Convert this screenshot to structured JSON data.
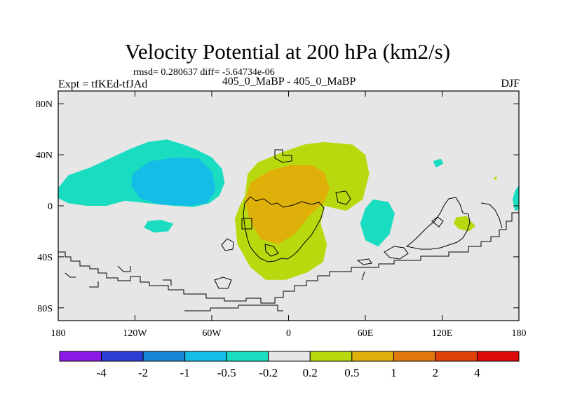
{
  "chart_data": {
    "type": "heatmap",
    "title": "Velocity Potential at 200 hPa (km2/s)",
    "stats": "rmsd= 0.280637  diff= -5.64734e-06",
    "left_label": "Expt = tfKEd-tfJAd",
    "center_label": "405_0_MaBP - 405_0_MaBP",
    "right_label": "DJF",
    "xlim": [
      -180,
      180
    ],
    "ylim": [
      -90,
      90
    ],
    "x_ticks": [
      {
        "value": -180,
        "label": "180"
      },
      {
        "value": -120,
        "label": "120W"
      },
      {
        "value": -60,
        "label": "60W"
      },
      {
        "value": 0,
        "label": "0"
      },
      {
        "value": 60,
        "label": "60E"
      },
      {
        "value": 120,
        "label": "120E"
      },
      {
        "value": 180,
        "label": "180"
      }
    ],
    "y_ticks": [
      {
        "value": 80,
        "label": "80N"
      },
      {
        "value": 40,
        "label": "40N"
      },
      {
        "value": 0,
        "label": "0"
      },
      {
        "value": -40,
        "label": "40S"
      },
      {
        "value": -80,
        "label": "80S"
      }
    ],
    "colorbar": {
      "colors": [
        "#8c1ae6",
        "#2b3fd6",
        "#1a86d9",
        "#14bde6",
        "#1adcc0",
        "#e6e6e6",
        "#b9d90f",
        "#dfaf0a",
        "#e1780e",
        "#e0410a",
        "#dc0a0a"
      ],
      "labels": [
        "-4",
        "-2",
        "-1",
        "-0.5",
        "-0.2",
        "0.2",
        "0.5",
        "1",
        "2",
        "4"
      ]
    },
    "background_color": "#e6e6e6",
    "regions": [
      {
        "level": "-0.5 to -0.2",
        "color": "#1adcc0",
        "points": [
          [
            -180,
            14
          ],
          [
            -172,
            24
          ],
          [
            -155,
            30
          ],
          [
            -140,
            37
          ],
          [
            -125,
            44
          ],
          [
            -110,
            50
          ],
          [
            -95,
            52
          ],
          [
            -82,
            48
          ],
          [
            -72,
            44
          ],
          [
            -60,
            38
          ],
          [
            -52,
            29
          ],
          [
            -50,
            18
          ],
          [
            -54,
            8
          ],
          [
            -62,
            2
          ],
          [
            -74,
            -1
          ],
          [
            -90,
            0
          ],
          [
            -110,
            2
          ],
          [
            -128,
            4
          ],
          [
            -142,
            0
          ],
          [
            -158,
            0
          ],
          [
            -172,
            2
          ],
          [
            -180,
            6
          ]
        ]
      },
      {
        "level": "-0.5 to -0.2",
        "color": "#1adcc0",
        "points": [
          [
            -110,
            -12
          ],
          [
            -100,
            -11
          ],
          [
            -90,
            -14
          ],
          [
            -94,
            -20
          ],
          [
            -105,
            -21
          ],
          [
            -113,
            -17
          ]
        ]
      },
      {
        "level": "-1 to -0.5",
        "color": "#14bde6",
        "points": [
          [
            -122,
            25
          ],
          [
            -108,
            35
          ],
          [
            -88,
            38
          ],
          [
            -70,
            37
          ],
          [
            -60,
            27
          ],
          [
            -57,
            12
          ],
          [
            -64,
            2
          ],
          [
            -78,
            0
          ],
          [
            -100,
            1
          ],
          [
            -116,
            6
          ],
          [
            -123,
            16
          ]
        ]
      },
      {
        "level": "-0.5 to -0.2",
        "color": "#1adcc0",
        "points": [
          [
            66,
            5
          ],
          [
            78,
            3
          ],
          [
            83,
            -6
          ],
          [
            79,
            -22
          ],
          [
            70,
            -32
          ],
          [
            60,
            -27
          ],
          [
            56,
            -14
          ],
          [
            60,
            -2
          ]
        ]
      },
      {
        "level": "-0.5 to -0.2",
        "color": "#1adcc0",
        "points": [
          [
            113,
            35
          ],
          [
            119,
            37
          ],
          [
            121,
            33
          ],
          [
            115,
            30
          ]
        ]
      },
      {
        "level": "-0.5 to -0.2",
        "color": "#1adcc0",
        "points": [
          [
            177,
            -4
          ],
          [
            180,
            -3
          ],
          [
            180,
            16
          ],
          [
            177,
            12
          ],
          [
            175,
            5
          ]
        ]
      },
      {
        "level": "0.2 to 0.5",
        "color": "#b9d90f",
        "points": [
          [
            -34,
            8
          ],
          [
            -32,
            25
          ],
          [
            -24,
            34
          ],
          [
            -5,
            42
          ],
          [
            12,
            48
          ],
          [
            28,
            50
          ],
          [
            50,
            48
          ],
          [
            60,
            40
          ],
          [
            63,
            25
          ],
          [
            58,
            5
          ],
          [
            45,
            -4
          ],
          [
            28,
            0
          ],
          [
            25,
            -14
          ],
          [
            30,
            -30
          ],
          [
            27,
            -44
          ],
          [
            15,
            -52
          ],
          [
            -2,
            -58
          ],
          [
            -18,
            -58
          ],
          [
            -30,
            -48
          ],
          [
            -40,
            -30
          ],
          [
            -42,
            -10
          ],
          [
            -38,
            0
          ]
        ]
      },
      {
        "level": "0.2 to 0.5",
        "color": "#b9d90f",
        "points": [
          [
            131,
            -9
          ],
          [
            139,
            -8
          ],
          [
            146,
            -16
          ],
          [
            141,
            -20
          ],
          [
            133,
            -18
          ],
          [
            129,
            -14
          ]
        ]
      },
      {
        "level": "0.2 to 0.5",
        "color": "#b9d90f",
        "points": [
          [
            160,
            22
          ],
          [
            163,
            23
          ],
          [
            162,
            20
          ]
        ]
      },
      {
        "level": "0.5 to 1",
        "color": "#dfaf0a",
        "points": [
          [
            -30,
            18
          ],
          [
            -14,
            28
          ],
          [
            2,
            32
          ],
          [
            18,
            32
          ],
          [
            28,
            26
          ],
          [
            32,
            14
          ],
          [
            28,
            3
          ],
          [
            16,
            -8
          ],
          [
            5,
            -22
          ],
          [
            -8,
            -30
          ],
          [
            -22,
            -26
          ],
          [
            -30,
            -12
          ],
          [
            -34,
            4
          ]
        ]
      }
    ]
  }
}
